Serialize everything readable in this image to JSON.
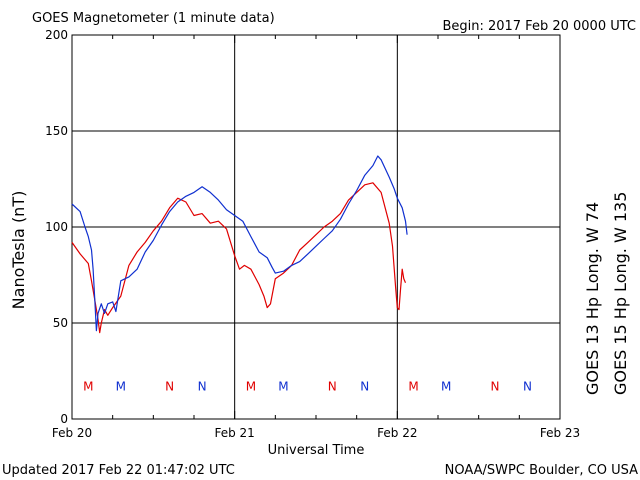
{
  "chart_data": {
    "type": "line",
    "title": "GOES Magnetometer (1 minute data)",
    "begin_label": "Begin:  2017 Feb 20 0000 UTC",
    "xlabel": "Universal Time",
    "ylabel": "NanoTesla (nT)",
    "x_tick_labels": [
      "Feb 20",
      "Feb 21",
      "Feb 22",
      "Feb 23"
    ],
    "y_ticks": [
      0,
      50,
      100,
      150,
      200
    ],
    "x_range_days": [
      0,
      3
    ],
    "ylim": [
      0,
      200
    ],
    "grid": true,
    "footer_left": "Updated 2017 Feb 22 01:47:02 UTC",
    "footer_right": "NOAA/SWPC Boulder, CO USA",
    "colors": {
      "goes13": "#e00000",
      "goes15": "#1030d0",
      "grid": "#000000"
    },
    "series": [
      {
        "name": "GOES 13 Hp  Long. W 74",
        "color": "#e00000",
        "points": [
          [
            0.0,
            92
          ],
          [
            0.05,
            86
          ],
          [
            0.1,
            81
          ],
          [
            0.12,
            72
          ],
          [
            0.14,
            62
          ],
          [
            0.16,
            52
          ],
          [
            0.17,
            45
          ],
          [
            0.18,
            50
          ],
          [
            0.2,
            57
          ],
          [
            0.22,
            54
          ],
          [
            0.25,
            58
          ],
          [
            0.3,
            64
          ],
          [
            0.35,
            80
          ],
          [
            0.4,
            87
          ],
          [
            0.45,
            92
          ],
          [
            0.5,
            98
          ],
          [
            0.55,
            103
          ],
          [
            0.6,
            110
          ],
          [
            0.65,
            115
          ],
          [
            0.7,
            113
          ],
          [
            0.75,
            106
          ],
          [
            0.8,
            107
          ],
          [
            0.85,
            102
          ],
          [
            0.9,
            103
          ],
          [
            0.95,
            99
          ],
          [
            1.0,
            85
          ],
          [
            1.03,
            78
          ],
          [
            1.06,
            80
          ],
          [
            1.1,
            78
          ],
          [
            1.15,
            70
          ],
          [
            1.18,
            64
          ],
          [
            1.2,
            58
          ],
          [
            1.22,
            60
          ],
          [
            1.25,
            73
          ],
          [
            1.3,
            76
          ],
          [
            1.35,
            80
          ],
          [
            1.4,
            88
          ],
          [
            1.45,
            92
          ],
          [
            1.5,
            96
          ],
          [
            1.55,
            100
          ],
          [
            1.6,
            103
          ],
          [
            1.65,
            107
          ],
          [
            1.7,
            114
          ],
          [
            1.75,
            118
          ],
          [
            1.8,
            122
          ],
          [
            1.85,
            123
          ],
          [
            1.9,
            118
          ],
          [
            1.95,
            102
          ],
          [
            1.97,
            90
          ],
          [
            1.98,
            79
          ],
          [
            1.99,
            68
          ],
          [
            2.0,
            58
          ],
          [
            2.01,
            57
          ],
          [
            2.02,
            68
          ],
          [
            2.03,
            78
          ],
          [
            2.04,
            73
          ],
          [
            2.05,
            71
          ]
        ]
      },
      {
        "name": "GOES 15 Hp  Long. W 135",
        "color": "#1030d0",
        "points": [
          [
            0.0,
            112
          ],
          [
            0.05,
            108
          ],
          [
            0.08,
            100
          ],
          [
            0.1,
            95
          ],
          [
            0.12,
            88
          ],
          [
            0.13,
            78
          ],
          [
            0.14,
            62
          ],
          [
            0.15,
            46
          ],
          [
            0.16,
            55
          ],
          [
            0.18,
            60
          ],
          [
            0.2,
            55
          ],
          [
            0.22,
            60
          ],
          [
            0.25,
            61
          ],
          [
            0.27,
            56
          ],
          [
            0.3,
            72
          ],
          [
            0.35,
            74
          ],
          [
            0.4,
            78
          ],
          [
            0.45,
            87
          ],
          [
            0.5,
            93
          ],
          [
            0.55,
            101
          ],
          [
            0.6,
            108
          ],
          [
            0.65,
            113
          ],
          [
            0.7,
            116
          ],
          [
            0.75,
            118
          ],
          [
            0.8,
            121
          ],
          [
            0.85,
            118
          ],
          [
            0.9,
            114
          ],
          [
            0.95,
            109
          ],
          [
            1.0,
            106
          ],
          [
            1.05,
            103
          ],
          [
            1.1,
            95
          ],
          [
            1.15,
            87
          ],
          [
            1.2,
            84
          ],
          [
            1.23,
            79
          ],
          [
            1.25,
            76
          ],
          [
            1.3,
            77
          ],
          [
            1.35,
            80
          ],
          [
            1.4,
            82
          ],
          [
            1.45,
            86
          ],
          [
            1.5,
            90
          ],
          [
            1.55,
            94
          ],
          [
            1.6,
            98
          ],
          [
            1.65,
            104
          ],
          [
            1.7,
            112
          ],
          [
            1.75,
            119
          ],
          [
            1.8,
            127
          ],
          [
            1.85,
            132
          ],
          [
            1.88,
            137
          ],
          [
            1.9,
            135
          ],
          [
            1.95,
            126
          ],
          [
            1.98,
            120
          ],
          [
            2.0,
            115
          ],
          [
            2.03,
            110
          ],
          [
            2.05,
            103
          ],
          [
            2.06,
            96
          ]
        ]
      }
    ],
    "annotations": [
      {
        "text": "M",
        "x": 0.1,
        "color": "#e00000"
      },
      {
        "text": "M",
        "x": 0.3,
        "color": "#1030d0"
      },
      {
        "text": "N",
        "x": 0.6,
        "color": "#e00000"
      },
      {
        "text": "N",
        "x": 0.8,
        "color": "#1030d0"
      },
      {
        "text": "M",
        "x": 1.1,
        "color": "#e00000"
      },
      {
        "text": "M",
        "x": 1.3,
        "color": "#1030d0"
      },
      {
        "text": "N",
        "x": 1.6,
        "color": "#e00000"
      },
      {
        "text": "N",
        "x": 1.8,
        "color": "#1030d0"
      },
      {
        "text": "M",
        "x": 2.1,
        "color": "#e00000"
      },
      {
        "text": "M",
        "x": 2.3,
        "color": "#1030d0"
      },
      {
        "text": "N",
        "x": 2.6,
        "color": "#e00000"
      },
      {
        "text": "N",
        "x": 2.8,
        "color": "#1030d0"
      }
    ],
    "annotation_y": 17
  }
}
